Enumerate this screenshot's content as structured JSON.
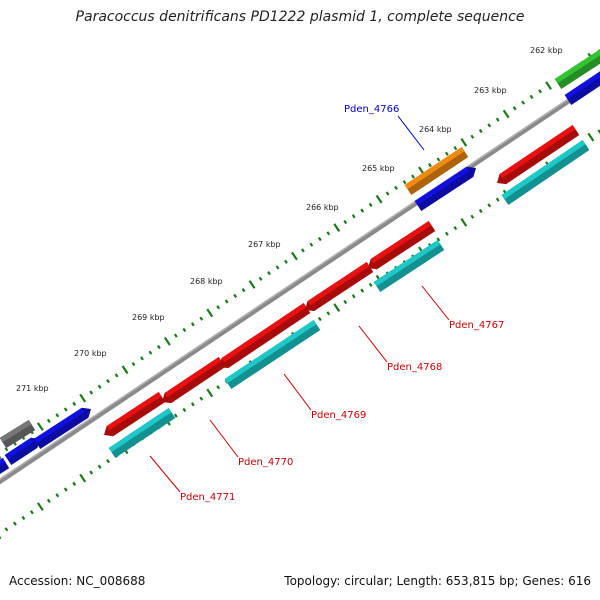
{
  "title": "Paracoccus denitrificans PD1222 plasmid 1, complete sequence",
  "footer": {
    "accession": "Accession: NC_008688",
    "summary": "Topology: circular; Length: 653,815 bp; Genes: 616"
  },
  "colors": {
    "backbone": "#8a8a8a",
    "tick": "#1a7a1a",
    "cds": "#e81010",
    "cds_product": "#1cc8c8",
    "other_gene": "#f08a10",
    "forward_cds": "#1010e0",
    "rna": "#33c433",
    "unknown": "#777777",
    "label_red": "#cc0000",
    "label_blue": "#0000cc"
  },
  "scale_labels": [
    "262 kbp",
    "263 kbp",
    "264 kbp",
    "265 kbp",
    "266 kbp",
    "267 kbp",
    "268 kbp",
    "269 kbp",
    "270 kbp",
    "271 kbp"
  ],
  "gene_labels": [
    {
      "text": "Pden_4766",
      "color": "blue"
    },
    {
      "text": "Pden_4767",
      "color": "red"
    },
    {
      "text": "Pden_4768",
      "color": "red"
    },
    {
      "text": "Pden_4769",
      "color": "red"
    },
    {
      "text": "Pden_4770",
      "color": "red"
    },
    {
      "text": "Pden_4771",
      "color": "red"
    }
  ]
}
